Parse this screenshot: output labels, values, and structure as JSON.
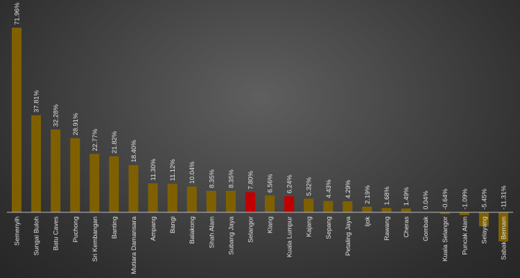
{
  "chart_data": {
    "type": "bar",
    "title": "",
    "xlabel": "",
    "ylabel": "",
    "ylim": [
      -15,
      75
    ],
    "grid": false,
    "legend": "none",
    "categories": [
      "Semenyih",
      "Sungai Buloh",
      "Batu Caves",
      "Puchong",
      "Sri Kembangan",
      "Banting",
      "Mutiara Damansara",
      "Ampang",
      "Bangi",
      "Balakong",
      "Shah Alam",
      "Subang Jaya",
      "Selangor",
      "Klang",
      "Kuala Lumpur",
      "Kajang",
      "Sepang",
      "Petaling Jaya",
      "Ijok",
      "Rawang",
      "Cheras",
      "Gombak",
      "Kuala Selangor",
      "Puncak Alam",
      "Selayang",
      "Sabak Bernam"
    ],
    "values": [
      71.96,
      37.81,
      32.28,
      28.91,
      22.77,
      21.82,
      18.4,
      11.3,
      11.12,
      10.04,
      8.35,
      8.35,
      7.8,
      6.56,
      6.24,
      5.32,
      4.43,
      4.29,
      2.19,
      1.68,
      1.49,
      0.04,
      -0.64,
      -1.09,
      -5.45,
      -11.31
    ],
    "data_labels": [
      "71.96%",
      "37.81%",
      "32.28%",
      "28.91%",
      "22.77%",
      "21.82%",
      "18.40%",
      "11.30%",
      "11.12%",
      "10.04%",
      "8.35%",
      "8.35%",
      "7.80%",
      "6.56%",
      "6.24%",
      "5.32%",
      "4.43%",
      "4.29%",
      "2.19%",
      "1.68%",
      "1.49%",
      "0.04%",
      "-0.64%",
      "-1.09%",
      "-5.45%",
      "-11.31%"
    ],
    "highlight_categories": [
      "Selangor",
      "Kuala Lumpur"
    ],
    "colors": {
      "bar": "#7f6000",
      "highlight": "#c00000",
      "axis": "#bfbfbf",
      "text": "#e2e2e2"
    }
  }
}
